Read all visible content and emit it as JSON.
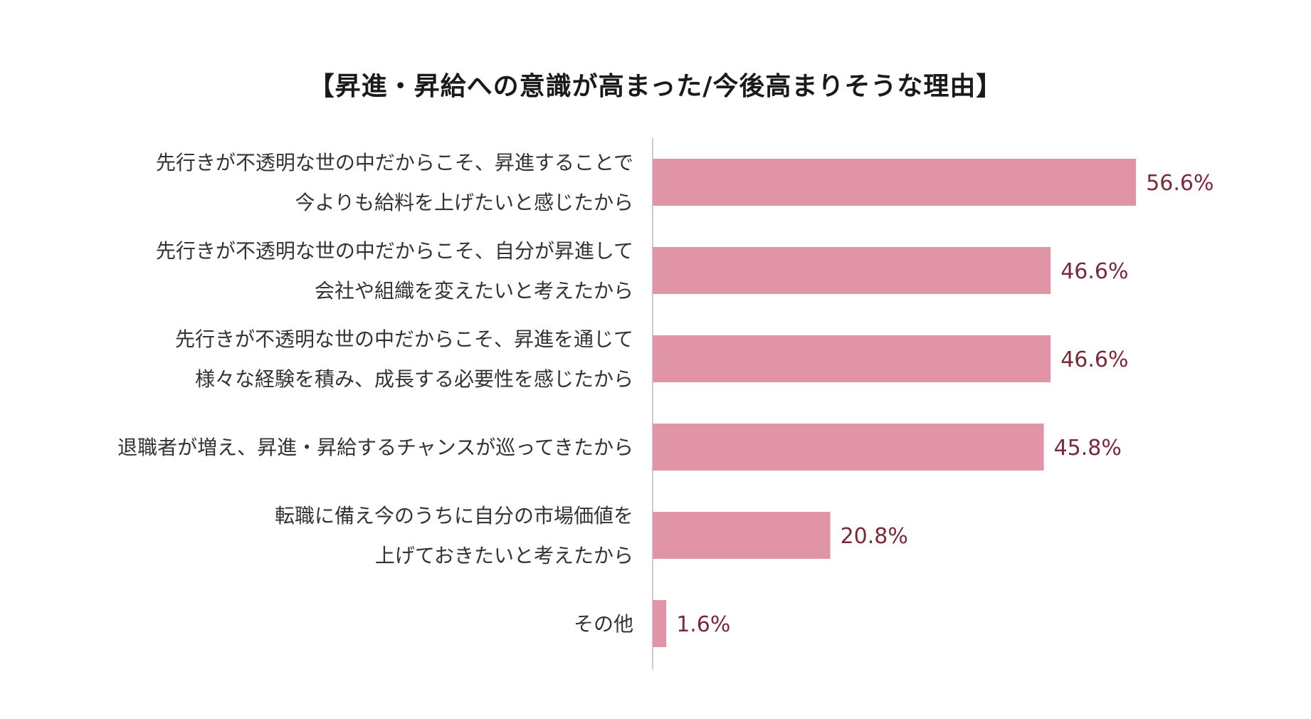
{
  "chart_data": {
    "type": "bar",
    "orientation": "horizontal",
    "title": "【昇進・昇給への意識が高まった/今後高まりそうな理由】",
    "categories": [
      [
        "先行きが不透明な世の中だからこそ、昇進することで",
        "今よりも給料を上げたいと感じたから"
      ],
      [
        "先行きが不透明な世の中だからこそ、自分が昇進して",
        "会社や組織を変えたいと考えたから"
      ],
      [
        "先行きが不透明な世の中だからこそ、昇進を通じて",
        "様々な経験を積み、成長する必要性を感じたから"
      ],
      [
        "退職者が増え、昇進・昇給するチャンスが巡ってきたから"
      ],
      [
        "転職に備え今のうちに自分の市場価値を",
        "上げておきたいと考えたから"
      ],
      [
        "その他"
      ]
    ],
    "values": [
      56.6,
      46.6,
      46.6,
      45.8,
      20.8,
      1.6
    ],
    "value_labels": [
      "56.6%",
      "46.6%",
      "46.6%",
      "45.8%",
      "20.8%",
      "1.6%"
    ],
    "xlim": [
      0,
      100
    ],
    "grid": false,
    "legend": "none",
    "colors": {
      "bar": "#e094a6",
      "value_text": "#7a2a3a",
      "axis": "#cccccc"
    }
  }
}
